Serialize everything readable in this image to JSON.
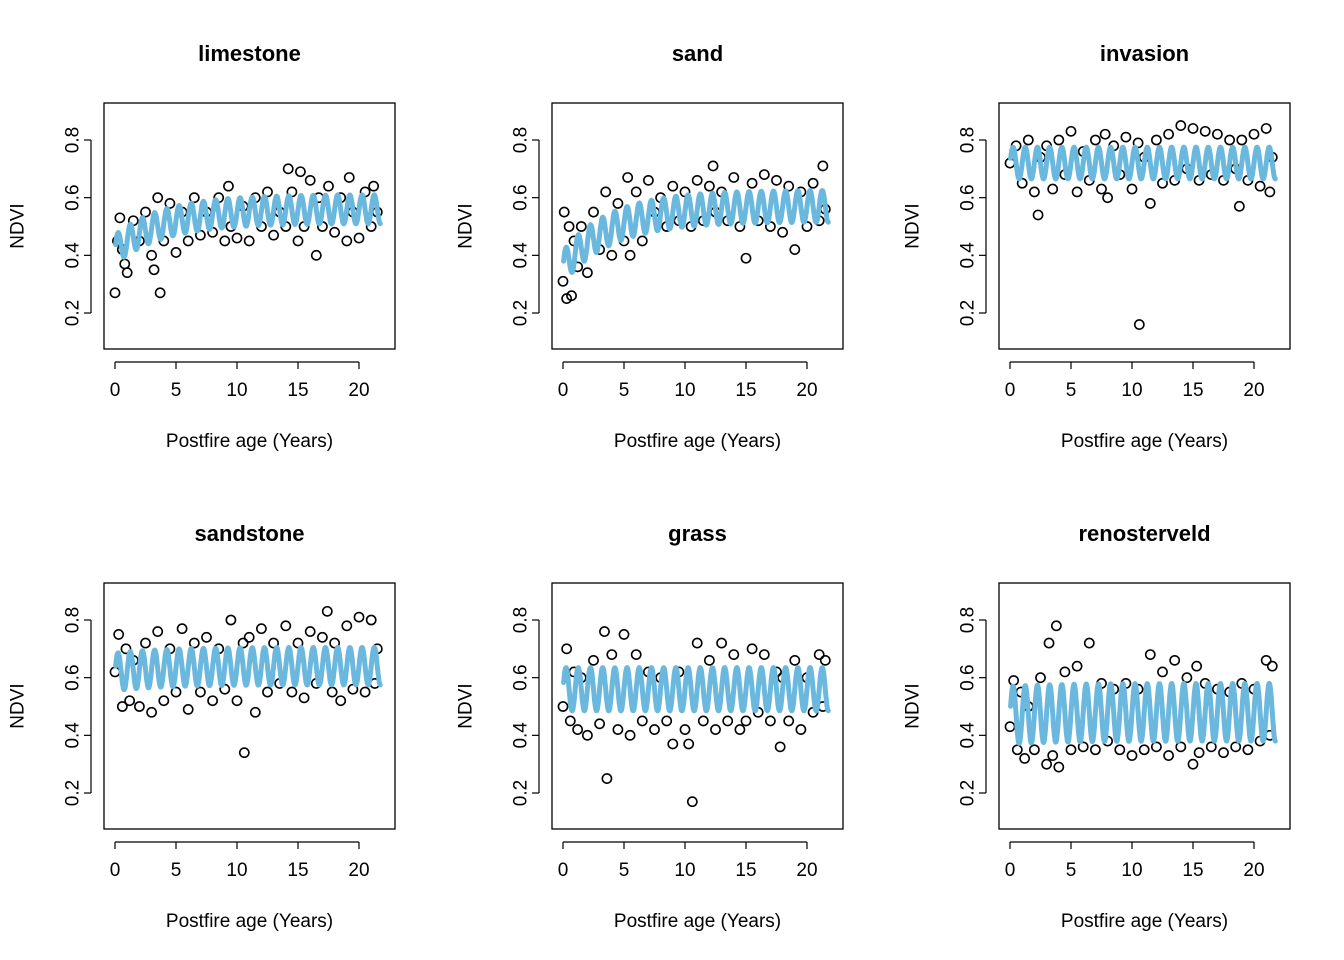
{
  "figure": {
    "xlabel": "Postfire age (Years)",
    "ylabel": "NDVI"
  },
  "colors": {
    "points": "#000000",
    "fit": "#6BB8DF",
    "axes": "#000000",
    "background": "#ffffff"
  },
  "chart_data": [
    {
      "type": "scatter",
      "title": "limestone",
      "xlabel": "Postfire age (Years)",
      "ylabel": "NDVI",
      "xlim": [
        0,
        22
      ],
      "ylim": [
        0.2,
        0.8
      ],
      "xticks": [
        "0",
        "5",
        "10",
        "15",
        "20"
      ],
      "yticks": [
        "0.2",
        "0.4",
        "0.6",
        "0.8"
      ],
      "series": [
        {
          "kind": "points",
          "x": [
            0,
            0.2,
            0.4,
            0.6,
            0.8,
            1,
            1.5,
            2,
            2.5,
            3,
            3.2,
            3.5,
            3.7,
            4,
            4.5,
            5,
            5.5,
            6,
            6.5,
            7,
            7.5,
            8,
            8.5,
            9,
            9.3,
            9.5,
            10,
            10.5,
            11,
            11.5,
            12,
            12.5,
            13,
            13.5,
            14,
            14.2,
            14.5,
            15,
            15.2,
            15.5,
            16,
            16.5,
            16.7,
            17,
            17.5,
            18,
            18.5,
            19,
            19.2,
            19.5,
            20,
            20.5,
            21,
            21.2,
            21.5
          ],
          "y": [
            0.27,
            0.45,
            0.53,
            0.42,
            0.37,
            0.34,
            0.52,
            0.45,
            0.55,
            0.4,
            0.35,
            0.6,
            0.27,
            0.45,
            0.58,
            0.41,
            0.55,
            0.45,
            0.6,
            0.47,
            0.55,
            0.48,
            0.6,
            0.45,
            0.64,
            0.5,
            0.46,
            0.57,
            0.45,
            0.6,
            0.5,
            0.62,
            0.47,
            0.55,
            0.5,
            0.7,
            0.62,
            0.45,
            0.69,
            0.5,
            0.66,
            0.4,
            0.6,
            0.5,
            0.64,
            0.48,
            0.6,
            0.45,
            0.67,
            0.55,
            0.46,
            0.62,
            0.5,
            0.64,
            0.55
          ]
        },
        {
          "kind": "fit",
          "name": "",
          "baseline": [
            0.42,
            0.56
          ],
          "amplitude": 0.05,
          "cycles": 22
        }
      ]
    },
    {
      "type": "scatter",
      "title": "sand",
      "xlabel": "Postfire age (Years)",
      "ylabel": "NDVI",
      "xlim": [
        0,
        22
      ],
      "ylim": [
        0.2,
        0.8
      ],
      "xticks": [
        "0",
        "5",
        "10",
        "15",
        "20"
      ],
      "yticks": [
        "0.2",
        "0.4",
        "0.6",
        "0.8"
      ],
      "series": [
        {
          "kind": "points",
          "x": [
            0,
            0.1,
            0.3,
            0.5,
            0.7,
            0.9,
            1.2,
            1.5,
            2,
            2.5,
            3,
            3.5,
            4,
            4.5,
            5,
            5.3,
            5.5,
            6,
            6.5,
            7,
            7.5,
            8,
            8.5,
            9,
            9.5,
            10,
            10.5,
            11,
            11.5,
            12,
            12.3,
            12.5,
            13,
            13.5,
            14,
            14.5,
            15,
            15.5,
            16,
            16.5,
            17,
            17.5,
            18,
            18.5,
            19,
            19.5,
            20,
            20.5,
            21,
            21.3,
            21.5
          ],
          "y": [
            0.31,
            0.55,
            0.25,
            0.5,
            0.26,
            0.45,
            0.36,
            0.5,
            0.34,
            0.55,
            0.42,
            0.62,
            0.4,
            0.58,
            0.45,
            0.67,
            0.4,
            0.62,
            0.45,
            0.66,
            0.55,
            0.6,
            0.5,
            0.64,
            0.52,
            0.62,
            0.5,
            0.66,
            0.52,
            0.64,
            0.71,
            0.55,
            0.62,
            0.52,
            0.67,
            0.5,
            0.39,
            0.65,
            0.52,
            0.68,
            0.5,
            0.66,
            0.48,
            0.64,
            0.42,
            0.62,
            0.5,
            0.65,
            0.52,
            0.71,
            0.56
          ]
        },
        {
          "kind": "fit",
          "name": "",
          "baseline": [
            0.36,
            0.57
          ],
          "amplitude": 0.055,
          "cycles": 22
        }
      ]
    },
    {
      "type": "scatter",
      "title": "invasion",
      "xlabel": "Postfire age (Years)",
      "ylabel": "NDVI",
      "xlim": [
        0,
        22
      ],
      "ylim": [
        0.2,
        0.8
      ],
      "xticks": [
        "0",
        "5",
        "10",
        "15",
        "20"
      ],
      "yticks": [
        "0.2",
        "0.4",
        "0.6",
        "0.8"
      ],
      "series": [
        {
          "kind": "points",
          "x": [
            0,
            0.5,
            1,
            1.5,
            2,
            2.3,
            2.5,
            3,
            3.5,
            4,
            4.5,
            5,
            5.5,
            6,
            6.5,
            7,
            7.5,
            7.8,
            8,
            8.5,
            9,
            9.5,
            10,
            10.5,
            10.6,
            11,
            11.5,
            12,
            12.5,
            13,
            13.5,
            14,
            14.5,
            15,
            15.5,
            16,
            16.5,
            17,
            17.5,
            18,
            18.5,
            18.8,
            19,
            19.5,
            20,
            20.5,
            21,
            21.3,
            21.5
          ],
          "y": [
            0.72,
            0.78,
            0.65,
            0.8,
            0.62,
            0.54,
            0.74,
            0.78,
            0.63,
            0.8,
            0.68,
            0.83,
            0.62,
            0.76,
            0.66,
            0.8,
            0.63,
            0.82,
            0.6,
            0.78,
            0.68,
            0.81,
            0.63,
            0.79,
            0.16,
            0.74,
            0.58,
            0.8,
            0.65,
            0.82,
            0.66,
            0.85,
            0.7,
            0.84,
            0.66,
            0.83,
            0.68,
            0.82,
            0.66,
            0.8,
            0.7,
            0.57,
            0.8,
            0.66,
            0.82,
            0.64,
            0.84,
            0.62,
            0.74
          ]
        },
        {
          "kind": "fit",
          "name": "",
          "baseline": [
            0.72,
            0.72
          ],
          "amplitude": 0.055,
          "cycles": 22
        }
      ]
    },
    {
      "type": "scatter",
      "title": "sandstone",
      "xlabel": "Postfire age (Years)",
      "ylabel": "NDVI",
      "xlim": [
        0,
        22
      ],
      "ylim": [
        0.2,
        0.8
      ],
      "xticks": [
        "0",
        "5",
        "10",
        "15",
        "20"
      ],
      "yticks": [
        "0.2",
        "0.4",
        "0.6",
        "0.8"
      ],
      "series": [
        {
          "kind": "points",
          "x": [
            0,
            0.3,
            0.6,
            0.9,
            1.2,
            1.5,
            2,
            2.5,
            3,
            3.5,
            4,
            4.5,
            5,
            5.5,
            6,
            6.5,
            7,
            7.5,
            8,
            8.5,
            9,
            9.5,
            10,
            10.5,
            10.6,
            11,
            11.5,
            12,
            12.5,
            13,
            13.5,
            14,
            14.5,
            15,
            15.5,
            16,
            16.5,
            17,
            17.4,
            17.8,
            18,
            18.5,
            19,
            19.5,
            20,
            20.5,
            21,
            21.3,
            21.5
          ],
          "y": [
            0.62,
            0.75,
            0.5,
            0.7,
            0.52,
            0.66,
            0.5,
            0.72,
            0.48,
            0.76,
            0.52,
            0.7,
            0.55,
            0.77,
            0.49,
            0.72,
            0.55,
            0.74,
            0.52,
            0.7,
            0.56,
            0.8,
            0.52,
            0.72,
            0.34,
            0.74,
            0.48,
            0.77,
            0.55,
            0.72,
            0.58,
            0.78,
            0.55,
            0.72,
            0.53,
            0.76,
            0.58,
            0.74,
            0.83,
            0.55,
            0.72,
            0.52,
            0.78,
            0.56,
            0.81,
            0.55,
            0.8,
            0.58,
            0.7
          ]
        },
        {
          "kind": "fit",
          "name": "",
          "baseline": [
            0.62,
            0.64
          ],
          "amplitude": 0.065,
          "cycles": 22
        }
      ]
    },
    {
      "type": "scatter",
      "title": "grass",
      "xlabel": "Postfire age (Years)",
      "ylabel": "NDVI",
      "xlim": [
        0,
        22
      ],
      "ylim": [
        0.2,
        0.8
      ],
      "xticks": [
        "0",
        "5",
        "10",
        "15",
        "20"
      ],
      "yticks": [
        "0.2",
        "0.4",
        "0.6",
        "0.8"
      ],
      "series": [
        {
          "kind": "points",
          "x": [
            0,
            0.3,
            0.6,
            0.9,
            1.2,
            1.5,
            2,
            2.5,
            3,
            3.4,
            3.6,
            4,
            4.5,
            5,
            5.5,
            6,
            6.5,
            7,
            7.5,
            8,
            8.5,
            9,
            9.5,
            10,
            10.3,
            10.6,
            11,
            11.5,
            12,
            12.5,
            13,
            13.5,
            14,
            14.5,
            15,
            15.5,
            16,
            16.5,
            17,
            17.5,
            17.8,
            18,
            18.5,
            19,
            19.5,
            20,
            20.5,
            21,
            21.3,
            21.5
          ],
          "y": [
            0.5,
            0.7,
            0.45,
            0.62,
            0.42,
            0.6,
            0.4,
            0.66,
            0.44,
            0.76,
            0.25,
            0.68,
            0.42,
            0.75,
            0.4,
            0.68,
            0.45,
            0.62,
            0.42,
            0.6,
            0.45,
            0.37,
            0.62,
            0.42,
            0.37,
            0.17,
            0.72,
            0.45,
            0.66,
            0.42,
            0.72,
            0.45,
            0.68,
            0.42,
            0.45,
            0.7,
            0.48,
            0.68,
            0.45,
            0.62,
            0.36,
            0.6,
            0.45,
            0.66,
            0.42,
            0.6,
            0.48,
            0.68,
            0.5,
            0.66
          ]
        },
        {
          "kind": "fit",
          "name": "",
          "baseline": [
            0.56,
            0.56
          ],
          "amplitude": 0.075,
          "cycles": 22
        }
      ]
    },
    {
      "type": "scatter",
      "title": "renosterveld",
      "xlabel": "Postfire age (Years)",
      "ylabel": "NDVI",
      "xlim": [
        0,
        22
      ],
      "ylim": [
        0.2,
        0.8
      ],
      "xticks": [
        "0",
        "5",
        "10",
        "15",
        "20"
      ],
      "yticks": [
        "0.2",
        "0.4",
        "0.6",
        "0.8"
      ],
      "series": [
        {
          "kind": "points",
          "x": [
            0,
            0.3,
            0.6,
            0.9,
            1.2,
            1.5,
            2,
            2.5,
            3,
            3.2,
            3.5,
            3.8,
            4,
            4.5,
            5,
            5.5,
            6,
            6.5,
            7,
            7.5,
            8,
            8.5,
            9,
            9.5,
            10,
            10.5,
            11,
            11.5,
            12,
            12.5,
            13,
            13.5,
            14,
            14.5,
            15,
            15.3,
            15.5,
            16,
            16.5,
            17,
            17.5,
            18,
            18.5,
            19,
            19.5,
            20,
            20.5,
            21,
            21.3,
            21.5
          ],
          "y": [
            0.43,
            0.59,
            0.35,
            0.55,
            0.32,
            0.5,
            0.35,
            0.6,
            0.3,
            0.72,
            0.33,
            0.78,
            0.29,
            0.62,
            0.35,
            0.64,
            0.36,
            0.72,
            0.35,
            0.58,
            0.38,
            0.56,
            0.35,
            0.58,
            0.33,
            0.56,
            0.35,
            0.68,
            0.36,
            0.62,
            0.33,
            0.66,
            0.36,
            0.6,
            0.3,
            0.64,
            0.34,
            0.58,
            0.36,
            0.56,
            0.34,
            0.55,
            0.36,
            0.58,
            0.35,
            0.56,
            0.38,
            0.66,
            0.4,
            0.64
          ]
        },
        {
          "kind": "fit",
          "name": "",
          "baseline": [
            0.47,
            0.48
          ],
          "amplitude": 0.1,
          "cycles": 22
        }
      ]
    }
  ]
}
